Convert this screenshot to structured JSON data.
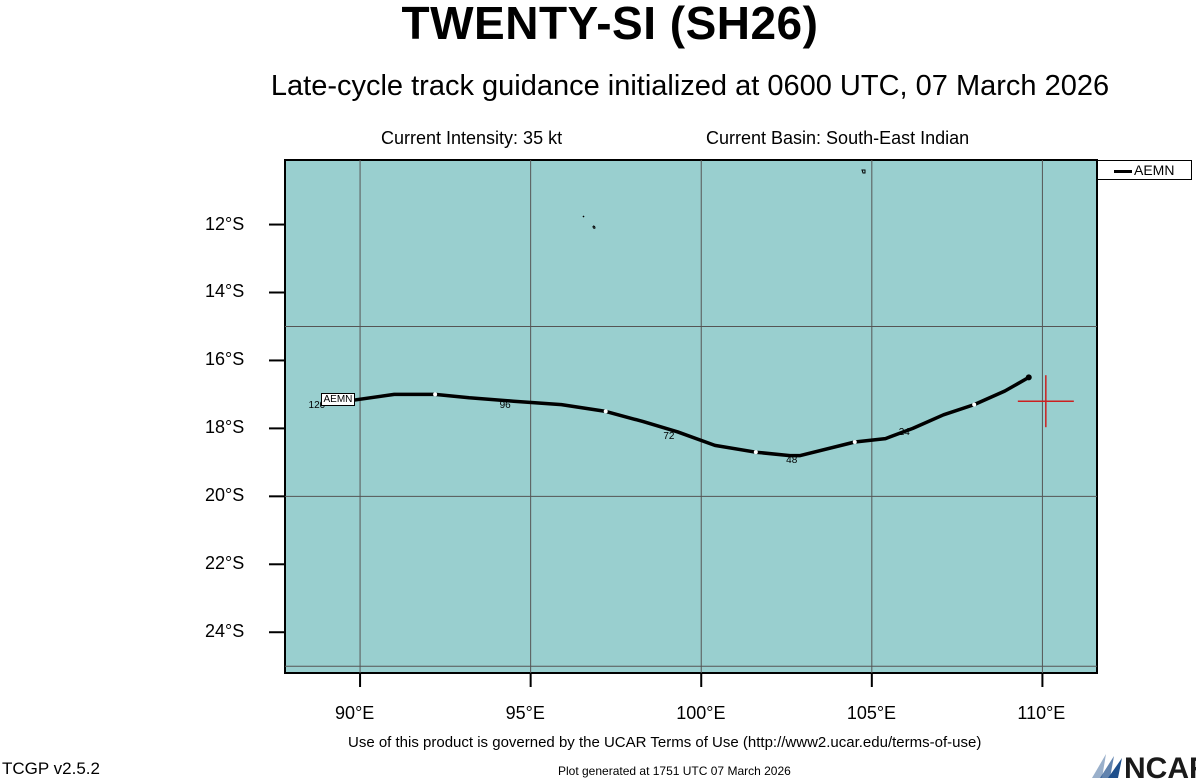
{
  "header": {
    "title": "TWENTY-SI (SH26)",
    "subtitle": "Late-cycle track guidance initialized at 0600 UTC, 07 March 2026",
    "intensity": "Current Intensity: 35 kt",
    "basin": "Current Basin: South-East Indian"
  },
  "map": {
    "ocean_color": "#99cfcf",
    "lon_ticks": [
      "90°E",
      "95°E",
      "100°E",
      "105°E",
      "110°E"
    ],
    "lat_ticks": [
      "12°S",
      "14°S",
      "16°S",
      "18°S",
      "20°S",
      "22°S",
      "24°S"
    ],
    "lon_values": [
      90,
      95,
      100,
      105,
      110
    ],
    "lat_values": [
      -12,
      -14,
      -16,
      -18,
      -20,
      -22,
      -24
    ],
    "lon_range": [
      87.8,
      111.6
    ],
    "lat_range": [
      -10.1,
      -25.2
    ],
    "current_position": {
      "lon": 110.1,
      "lat": -17.2,
      "color": "#cc2020"
    }
  },
  "track": {
    "model": "AEMN",
    "color": "#000000",
    "points": [
      {
        "lon": 109.6,
        "lat": -16.5
      },
      {
        "lon": 108.9,
        "lat": -16.9
      },
      {
        "lon": 108.0,
        "lat": -17.3
      },
      {
        "lon": 107.1,
        "lat": -17.6
      },
      {
        "lon": 106.2,
        "lat": -18.0
      },
      {
        "lon": 105.4,
        "lat": -18.3
      },
      {
        "lon": 104.5,
        "lat": -18.4
      },
      {
        "lon": 102.9,
        "lat": -18.8
      },
      {
        "lon": 102.6,
        "lat": -18.8
      },
      {
        "lon": 101.6,
        "lat": -18.7
      },
      {
        "lon": 100.4,
        "lat": -18.5
      },
      {
        "lon": 99.3,
        "lat": -18.1
      },
      {
        "lon": 98.3,
        "lat": -17.8
      },
      {
        "lon": 97.2,
        "lat": -17.5
      },
      {
        "lon": 95.9,
        "lat": -17.3
      },
      {
        "lon": 94.5,
        "lat": -17.2
      },
      {
        "lon": 93.2,
        "lat": -17.1
      },
      {
        "lon": 92.2,
        "lat": -17.0
      },
      {
        "lon": 91.0,
        "lat": -17.0
      },
      {
        "lon": 89.6,
        "lat": -17.2
      },
      {
        "lon": 88.9,
        "lat": -17.2
      }
    ],
    "white_dots": [
      {
        "lon": 108.0,
        "lat": -17.3
      },
      {
        "lon": 104.5,
        "lat": -18.4
      },
      {
        "lon": 101.6,
        "lat": -18.7
      },
      {
        "lon": 97.2,
        "lat": -17.5
      },
      {
        "lon": 92.2,
        "lat": -17.0
      }
    ],
    "hour_labels": [
      {
        "text": "24",
        "lon": 106.2,
        "lat": -18.0
      },
      {
        "text": "48",
        "lon": 102.9,
        "lat": -18.8
      },
      {
        "text": "72",
        "lon": 99.3,
        "lat": -18.1
      },
      {
        "text": "96",
        "lon": 94.5,
        "lat": -17.2
      },
      {
        "text": "120",
        "lon": 88.9,
        "lat": -17.2
      }
    ]
  },
  "legend": {
    "label": "AEMN"
  },
  "footer": {
    "terms": "Use of this product is governed by the UCAR Terms of Use (http://www2.ucar.edu/terms-of-use)",
    "version": "TCGP v2.5.2",
    "generated": "Plot generated at 1751 UTC   07 March 2026",
    "logo": "NCAR"
  }
}
